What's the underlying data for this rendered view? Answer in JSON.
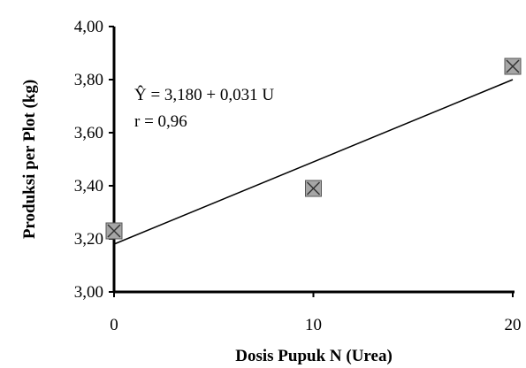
{
  "chart_data": {
    "type": "scatter",
    "title": "",
    "xlabel": "Dosis Pupuk N (Urea)",
    "ylabel": "Produksi per Plot (kg)",
    "xlim": [
      0,
      20
    ],
    "ylim": [
      3.0,
      4.0
    ],
    "x_ticks": [
      "0",
      "10",
      "20"
    ],
    "x_tick_values": [
      0,
      10,
      20
    ],
    "y_ticks": [
      "3,00",
      "3,20",
      "3,40",
      "3,60",
      "3,80",
      "4,00"
    ],
    "y_tick_values": [
      3.0,
      3.2,
      3.4,
      3.6,
      3.8,
      4.0
    ],
    "grid": false,
    "legend": "none",
    "series": [
      {
        "values": [
          {
            "x": 0,
            "y": 3.23
          },
          {
            "x": 10,
            "y": 3.39
          },
          {
            "x": 20,
            "y": 3.85
          }
        ],
        "marker": "boxed-x",
        "marker_fill": "#a6a6a6"
      }
    ],
    "trendline": {
      "intercept": 3.18,
      "slope": 0.031,
      "color": "#000000"
    },
    "annotations": {
      "equation": "Ŷ  = 3,180 + 0,031 U",
      "r_value": "r  = 0,96"
    }
  }
}
